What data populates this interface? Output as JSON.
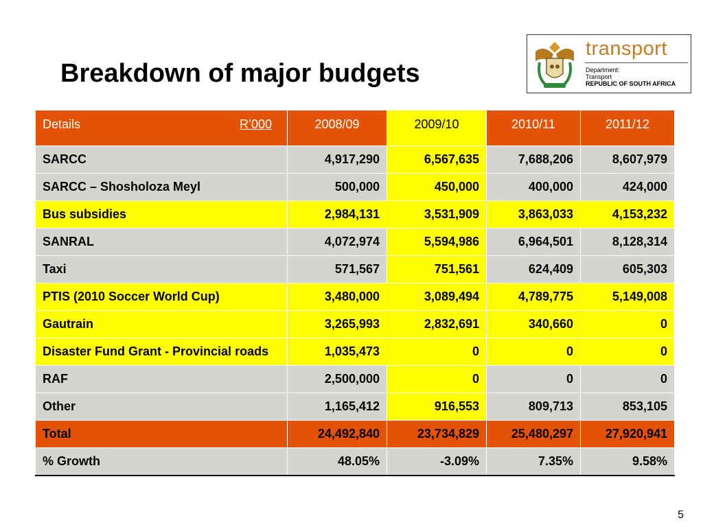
{
  "slide": {
    "title": "Breakdown of major budgets",
    "page_number": "5"
  },
  "logo": {
    "word": "transport",
    "line1": "Department:",
    "line2": "Transport",
    "line3": "REPUBLIC OF SOUTH AFRICA",
    "crest_icon": "south-africa-coat-of-arms-icon"
  },
  "table": {
    "header": {
      "details": "Details",
      "unit": "R’000",
      "years": [
        "2008/09",
        "2009/10",
        "2010/11",
        "2011/12"
      ]
    },
    "rows": [
      {
        "label": "SARCC",
        "values": [
          "4,917,290",
          "6,567,635",
          "7,688,206",
          "8,607,979"
        ],
        "style": "grey"
      },
      {
        "label": "SARCC – Shosholoza Meyl",
        "values": [
          "500,000",
          "450,000",
          "400,000",
          "424,000"
        ],
        "style": "grey"
      },
      {
        "label": "Bus subsidies",
        "values": [
          "2,984,131",
          "3,531,909",
          "3,863,033",
          "4,153,232"
        ],
        "style": "yellow"
      },
      {
        "label": "SANRAL",
        "values": [
          "4,072,974",
          "5,594,986",
          "6,964,501",
          "8,128,314"
        ],
        "style": "grey"
      },
      {
        "label": "Taxi",
        "values": [
          "571,567",
          "751,561",
          "624,409",
          "605,303"
        ],
        "style": "grey"
      },
      {
        "label": "PTIS (2010 Soccer World Cup)",
        "values": [
          "3,480,000",
          "3,089,494",
          "4,789,775",
          "5,149,008"
        ],
        "style": "yellow"
      },
      {
        "label": "Gautrain",
        "values": [
          "3,265,993",
          "2,832,691",
          "340,660",
          "0"
        ],
        "style": "yellow"
      },
      {
        "label": "Disaster Fund Grant - Provincial roads",
        "values": [
          "1,035,473",
          "0",
          "0",
          "0"
        ],
        "style": "yellow"
      },
      {
        "label": "RAF",
        "values": [
          "2,500,000",
          "0",
          "0",
          "0"
        ],
        "style": "grey"
      },
      {
        "label": "Other",
        "values": [
          "1,165,412",
          "916,553",
          "809,713",
          "853,105"
        ],
        "style": "grey"
      },
      {
        "label": "Total",
        "values": [
          "24,492,840",
          "23,734,829",
          "25,480,297",
          "27,920,941"
        ],
        "style": "total"
      },
      {
        "label": "% Growth",
        "values": [
          "48.05%",
          "-3.09%",
          "7.35%",
          "9.58%"
        ],
        "style": "growth"
      }
    ]
  },
  "colors": {
    "header_orange": "#e35205",
    "highlight_yellow": "#ffff00",
    "row_grey": "#d4d4d0",
    "logo_orange": "#c87b22"
  }
}
